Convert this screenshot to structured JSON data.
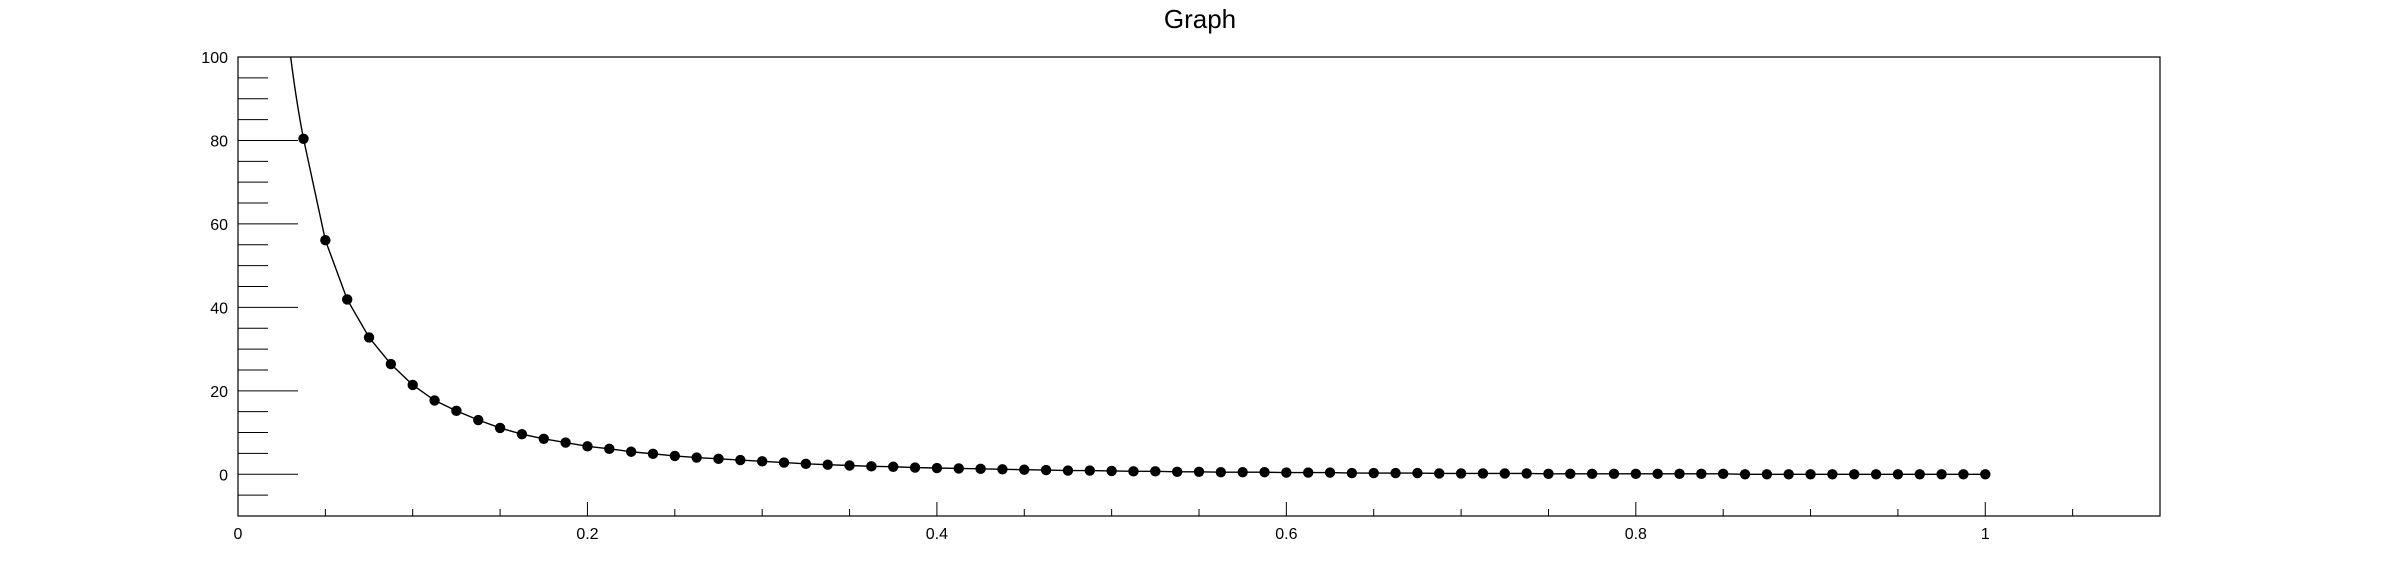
{
  "chart_data": {
    "type": "scatter",
    "title": "Graph",
    "xlabel": "",
    "ylabel": "",
    "xlim": [
      0,
      1.1
    ],
    "ylim": [
      -10,
      100
    ],
    "x_ticks": [
      0,
      0.2,
      0.4,
      0.6,
      0.8,
      1
    ],
    "x_tick_labels": [
      "0",
      "0.2",
      "0.4",
      "0.6",
      "0.8",
      "1"
    ],
    "y_ticks": [
      0,
      20,
      40,
      60,
      80,
      100
    ],
    "y_tick_labels": [
      "0",
      "20",
      "40",
      "60",
      "80",
      "100"
    ],
    "grid": false,
    "series": [
      {
        "color": "#000000",
        "line": true,
        "x": [
          0.0375,
          0.05,
          0.0625,
          0.075,
          0.0875,
          0.1,
          0.1125,
          0.125,
          0.1375,
          0.15,
          0.1625,
          0.175,
          0.1875,
          0.2,
          0.2125,
          0.225,
          0.2375,
          0.25,
          0.2625,
          0.275,
          0.2875,
          0.3,
          0.3125,
          0.325,
          0.3375,
          0.35,
          0.3625,
          0.375,
          0.3875,
          0.4,
          0.4125,
          0.425,
          0.4375,
          0.45,
          0.4625,
          0.475,
          0.4875,
          0.5,
          0.5125,
          0.525,
          0.5375,
          0.55,
          0.5625,
          0.575,
          0.5875,
          0.6,
          0.6125,
          0.625,
          0.6375,
          0.65,
          0.6625,
          0.675,
          0.6875,
          0.7,
          0.7125,
          0.725,
          0.7375,
          0.75,
          0.7625,
          0.775,
          0.7875,
          0.8,
          0.8125,
          0.825,
          0.8375,
          0.85,
          0.8625,
          0.875,
          0.8875,
          0.9,
          0.9125,
          0.925,
          0.9375,
          0.95,
          0.9625,
          0.975,
          0.9875,
          1.0
        ],
        "y": [
          80.4,
          56.1,
          41.9,
          32.8,
          26.4,
          21.4,
          17.7,
          15.2,
          13.0,
          11.1,
          9.6,
          8.5,
          7.6,
          6.7,
          6.1,
          5.4,
          4.9,
          4.4,
          4.0,
          3.7,
          3.4,
          3.1,
          2.8,
          2.5,
          2.3,
          2.1,
          1.9,
          1.8,
          1.6,
          1.5,
          1.4,
          1.3,
          1.2,
          1.1,
          1.0,
          0.9,
          0.9,
          0.8,
          0.7,
          0.7,
          0.6,
          0.6,
          0.5,
          0.5,
          0.5,
          0.4,
          0.4,
          0.4,
          0.3,
          0.3,
          0.3,
          0.3,
          0.2,
          0.2,
          0.2,
          0.2,
          0.2,
          0.1,
          0.1,
          0.1,
          0.1,
          0.1,
          0.1,
          0.1,
          0.1,
          0.1,
          0.0,
          0.0,
          0.0,
          0.0,
          0.0,
          0.0,
          0.0,
          0.0,
          0.0,
          0.0,
          0.0,
          0.0
        ]
      }
    ]
  }
}
